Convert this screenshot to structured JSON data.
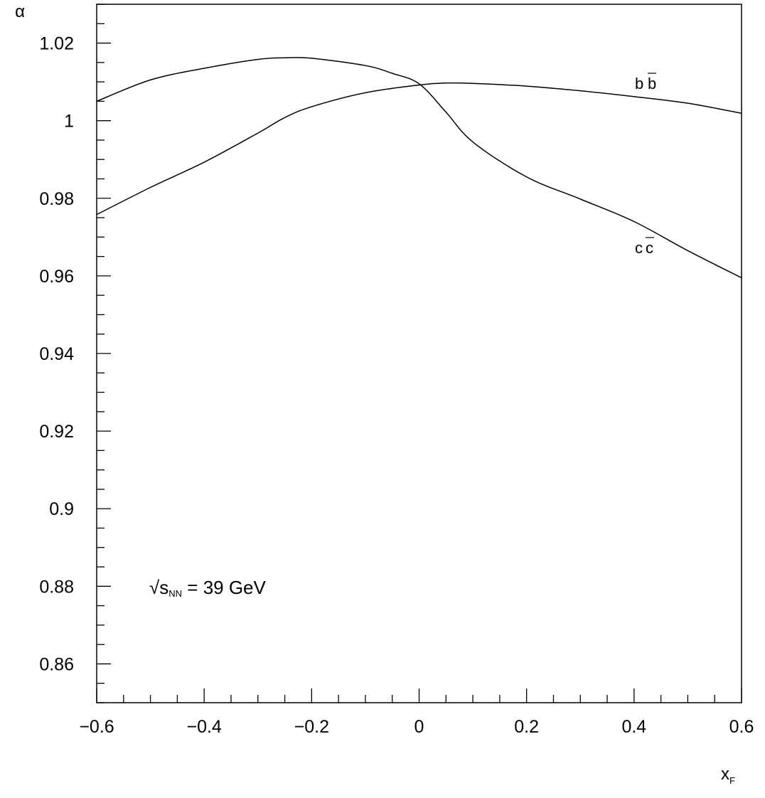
{
  "chart_data": {
    "type": "line",
    "xlabel": "x",
    "xlabel_sub": "F",
    "ylabel": "α",
    "xlim": [
      -0.6,
      0.6
    ],
    "ylim": [
      0.85,
      1.03
    ],
    "x_ticks": [
      -0.6,
      -0.4,
      -0.2,
      0,
      0.2,
      0.4,
      0.6
    ],
    "x_tick_labels": [
      "−0.6",
      "−0.4",
      "−0.2",
      "0",
      "0.2",
      "0.4",
      "0.6"
    ],
    "y_ticks": [
      0.86,
      0.88,
      0.9,
      0.92,
      0.94,
      0.96,
      0.98,
      1.0,
      1.02
    ],
    "y_tick_labels": [
      "0.86",
      "0.88",
      "0.9",
      "0.92",
      "0.94",
      "0.96",
      "0.98",
      "1",
      "1.02"
    ],
    "annotation": {
      "prefix": "√s",
      "sub": "NN",
      "suffix": " = 39 GeV"
    },
    "series": [
      {
        "name": "bb̄",
        "label_base": "b",
        "label_bar": "b",
        "x": [
          -0.6,
          -0.5,
          -0.4,
          -0.3,
          -0.25,
          -0.2,
          -0.1,
          -0.05,
          0,
          0.05,
          0.1,
          0.2,
          0.3,
          0.4,
          0.5,
          0.6
        ],
        "y": [
          1.005,
          1.0105,
          1.0135,
          1.0158,
          1.0162,
          1.0161,
          1.0142,
          1.0122,
          1.0095,
          1.0022,
          0.9945,
          0.9855,
          0.9798,
          0.974,
          0.9665,
          0.9595
        ]
      },
      {
        "name": "cc̄",
        "label_base": "c",
        "label_bar": "c",
        "x": [
          -0.6,
          -0.5,
          -0.4,
          -0.3,
          -0.25,
          -0.2,
          -0.1,
          0,
          0.05,
          0.1,
          0.2,
          0.3,
          0.4,
          0.5,
          0.6
        ],
        "y": [
          0.9758,
          0.9828,
          0.9893,
          0.9968,
          1.0008,
          1.0036,
          1.0072,
          1.0092,
          1.0097,
          1.0096,
          1.0089,
          1.0077,
          1.0062,
          1.0045,
          1.0019
        ]
      }
    ]
  }
}
